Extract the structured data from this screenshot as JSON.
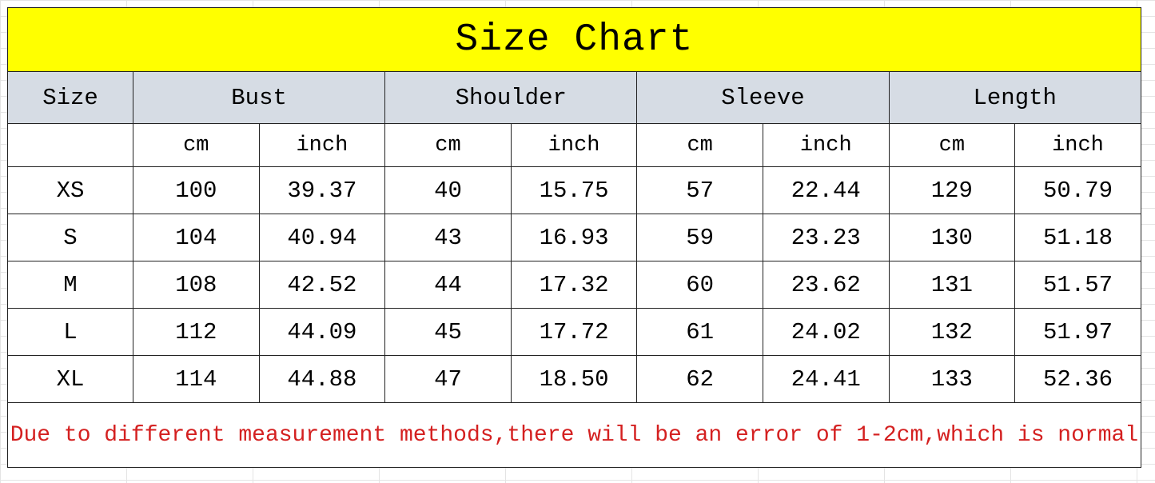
{
  "title": "Size Chart",
  "headers": {
    "size": "Size",
    "groups": [
      "Bust",
      "Shoulder",
      "Sleeve",
      "Length"
    ]
  },
  "units": [
    "cm",
    "inch",
    "cm",
    "inch",
    "cm",
    "inch",
    "cm",
    "inch"
  ],
  "rows": [
    {
      "size": "XS",
      "values": [
        "100",
        "39.37",
        "40",
        "15.75",
        "57",
        "22.44",
        "129",
        "50.79"
      ]
    },
    {
      "size": "S",
      "values": [
        "104",
        "40.94",
        "43",
        "16.93",
        "59",
        "23.23",
        "130",
        "51.18"
      ]
    },
    {
      "size": "M",
      "values": [
        "108",
        "42.52",
        "44",
        "17.32",
        "60",
        "23.62",
        "131",
        "51.57"
      ]
    },
    {
      "size": "L",
      "values": [
        "112",
        "44.09",
        "45",
        "17.72",
        "61",
        "24.02",
        "132",
        "51.97"
      ]
    },
    {
      "size": "XL",
      "values": [
        "114",
        "44.88",
        "47",
        "18.50",
        "62",
        "24.41",
        "133",
        "52.36"
      ]
    }
  ],
  "note": "Due to different measurement methods,there will be an error of 1-2cm,which is normal",
  "colors": {
    "title_bg": "#ffff00",
    "header_bg": "#d6dce4",
    "note_text": "#d42020"
  }
}
